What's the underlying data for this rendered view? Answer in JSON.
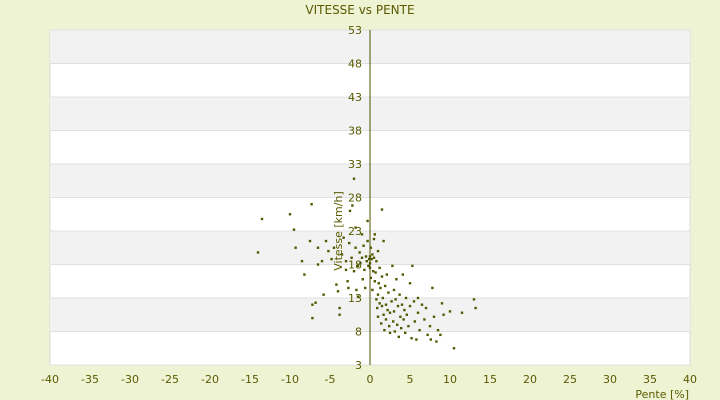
{
  "chart_data": {
    "type": "scatter",
    "title": "VITESSE vs PENTE",
    "xlabel": "Pente [%]",
    "ylabel": "Vitesse [km/h]",
    "xlim": [
      -40,
      40
    ],
    "ylim": [
      3,
      53
    ],
    "x_ticks": [
      -40,
      -35,
      -30,
      -25,
      -20,
      -15,
      -10,
      -5,
      0,
      5,
      10,
      15,
      20,
      25,
      30,
      35,
      40
    ],
    "y_ticks": [
      3,
      8,
      13,
      18,
      23,
      28,
      33,
      38,
      43,
      48,
      53
    ],
    "grid": "horizontal alternating bands",
    "legend": "none",
    "colors": {
      "background": "#eef3d3",
      "plot": "#ffffff",
      "band": "#f2f2f2",
      "text": "#5a5a00",
      "point": "#4f5a00",
      "axis": "#4d4d00"
    },
    "points": [
      [
        -14,
        19.8
      ],
      [
        -13.5,
        24.8
      ],
      [
        -10,
        25.5
      ],
      [
        -9.5,
        23.2
      ],
      [
        -9.3,
        20.5
      ],
      [
        -8.5,
        18.5
      ],
      [
        -8.2,
        16.5
      ],
      [
        -7.5,
        21.5
      ],
      [
        -7.3,
        27
      ],
      [
        -7.2,
        12
      ],
      [
        -7.2,
        10
      ],
      [
        -6.8,
        12.3
      ],
      [
        -6.5,
        18
      ],
      [
        -6.5,
        20.5
      ],
      [
        -6,
        18.5
      ],
      [
        -5.8,
        13.5
      ],
      [
        -5.5,
        21.5
      ],
      [
        -5.2,
        20
      ],
      [
        -4.8,
        18.8
      ],
      [
        -4.5,
        20.5
      ],
      [
        -4.2,
        15
      ],
      [
        -4,
        14
      ],
      [
        -3.8,
        11.5
      ],
      [
        -3.8,
        10.5
      ],
      [
        -3.5,
        19.5
      ],
      [
        -3.3,
        22
      ],
      [
        -3,
        18.5
      ],
      [
        -3,
        17.2
      ],
      [
        -2.8,
        15.5
      ],
      [
        -2.7,
        14.5
      ],
      [
        -2.6,
        21.2
      ],
      [
        -2.5,
        26
      ],
      [
        -2.3,
        19
      ],
      [
        -2.2,
        26.8
      ],
      [
        -2,
        30.8
      ],
      [
        -2,
        17
      ],
      [
        -1.8,
        23.5
      ],
      [
        -1.8,
        20.5
      ],
      [
        -1.7,
        14.2
      ],
      [
        -1.5,
        17.8
      ],
      [
        -1.5,
        13.2
      ],
      [
        -1.3,
        19.8
      ],
      [
        -1.2,
        18.2
      ],
      [
        -1,
        22.5
      ],
      [
        -1,
        19
      ],
      [
        -0.9,
        15.8
      ],
      [
        -0.8,
        20.8
      ],
      [
        -0.7,
        17.2
      ],
      [
        -0.6,
        14.5
      ],
      [
        -0.5,
        19.2
      ],
      [
        -0.4,
        18.5
      ],
      [
        -0.3,
        24.5
      ],
      [
        -0.3,
        21.5
      ],
      [
        -0.2,
        17.8
      ],
      [
        -0.1,
        18.8
      ],
      [
        0,
        19.2
      ],
      [
        0,
        18.2
      ],
      [
        0,
        17.5
      ],
      [
        0.1,
        20.5
      ],
      [
        0.1,
        16
      ],
      [
        0.2,
        18.8
      ],
      [
        0.3,
        19.5
      ],
      [
        0.3,
        14.2
      ],
      [
        0.4,
        17
      ],
      [
        0.5,
        19
      ],
      [
        0.5,
        21.8
      ],
      [
        0.6,
        22.5
      ],
      [
        0.6,
        15.5
      ],
      [
        0.7,
        16.8
      ],
      [
        0.8,
        18.5
      ],
      [
        0.8,
        12.8
      ],
      [
        0.9,
        11.5
      ],
      [
        1,
        20
      ],
      [
        1,
        13.5
      ],
      [
        1,
        10.2
      ],
      [
        1.1,
        15.2
      ],
      [
        1.2,
        17.5
      ],
      [
        1.2,
        12.2
      ],
      [
        1.3,
        14.5
      ],
      [
        1.4,
        9.2
      ],
      [
        1.5,
        26.2
      ],
      [
        1.5,
        16.2
      ],
      [
        1.5,
        11.8
      ],
      [
        1.6,
        13
      ],
      [
        1.7,
        21.5
      ],
      [
        1.7,
        10.5
      ],
      [
        1.8,
        8.2
      ],
      [
        1.9,
        14.8
      ],
      [
        2,
        12
      ],
      [
        2,
        9.8
      ],
      [
        2.1,
        16.5
      ],
      [
        2.2,
        11.2
      ],
      [
        2.3,
        13.8
      ],
      [
        2.4,
        8.8
      ],
      [
        2.5,
        10.8
      ],
      [
        2.5,
        7.8
      ],
      [
        2.7,
        12.5
      ],
      [
        2.8,
        17.8
      ],
      [
        2.9,
        9.5
      ],
      [
        3,
        14.2
      ],
      [
        3,
        11
      ],
      [
        3.1,
        8
      ],
      [
        3.2,
        12.8
      ],
      [
        3.3,
        15.8
      ],
      [
        3.4,
        9
      ],
      [
        3.5,
        11.8
      ],
      [
        3.6,
        7.2
      ],
      [
        3.7,
        13.5
      ],
      [
        3.8,
        10.2
      ],
      [
        3.9,
        8.5
      ],
      [
        4,
        12
      ],
      [
        4.1,
        16.5
      ],
      [
        4.2,
        9.8
      ],
      [
        4.3,
        11.2
      ],
      [
        4.4,
        7.8
      ],
      [
        4.5,
        13
      ],
      [
        4.6,
        10.5
      ],
      [
        4.8,
        8.8
      ],
      [
        5,
        15.2
      ],
      [
        5,
        11.8
      ],
      [
        5.2,
        7
      ],
      [
        5.3,
        17.8
      ],
      [
        5.5,
        12.5
      ],
      [
        5.6,
        9.5
      ],
      [
        5.8,
        6.8
      ],
      [
        6,
        10.8
      ],
      [
        6,
        13
      ],
      [
        6.2,
        8.2
      ],
      [
        6.5,
        12
      ],
      [
        6.8,
        9.8
      ],
      [
        7,
        11.5
      ],
      [
        7.2,
        7.5
      ],
      [
        7.5,
        8.8
      ],
      [
        7.6,
        6.8
      ],
      [
        7.8,
        14.5
      ],
      [
        8,
        10.2
      ],
      [
        8.3,
        6.5
      ],
      [
        8.5,
        8.2
      ],
      [
        8.8,
        7.5
      ],
      [
        9,
        12.2
      ],
      [
        9.2,
        10.5
      ],
      [
        10,
        11
      ],
      [
        10.5,
        5.5
      ],
      [
        11.5,
        10.8
      ],
      [
        13,
        12.8
      ],
      [
        13.2,
        11.5
      ]
    ]
  }
}
